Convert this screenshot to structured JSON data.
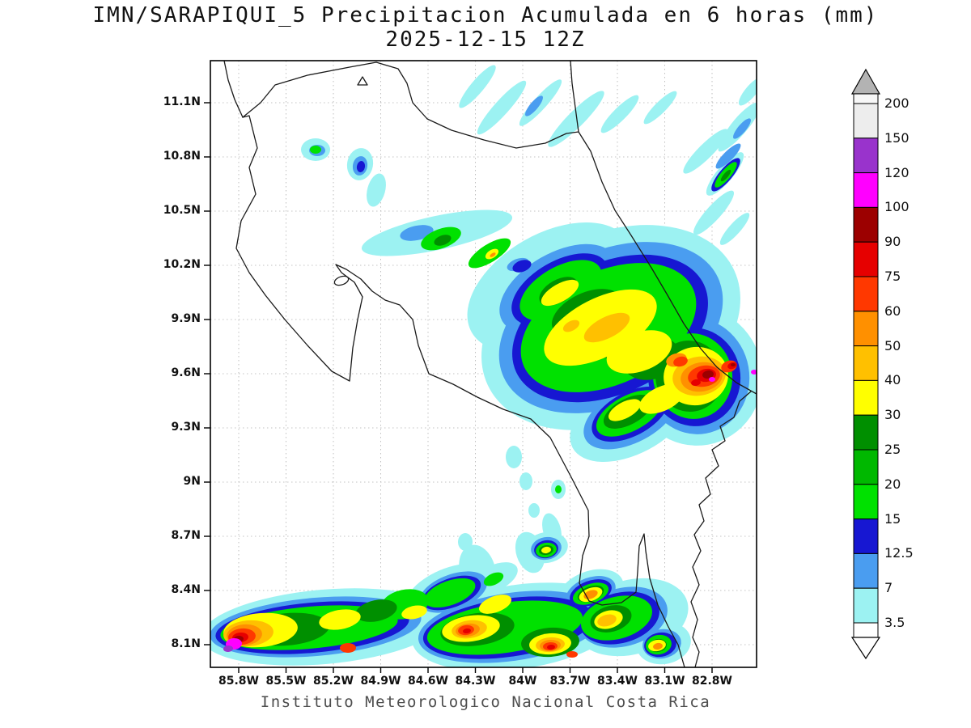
{
  "title": {
    "line1": "IMN/SARAPIQUI_5 Precipitacion Acumulada en 6 horas (mm)",
    "line2": "2025-12-15 12Z"
  },
  "footer": "Instituto Meteorologico Nacional Costa Rica",
  "map": {
    "region": "Costa Rica",
    "lat_ticks": [
      "11.1N",
      "10.8N",
      "10.5N",
      "10.2N",
      "9.9N",
      "9.6N",
      "9.3N",
      "9N",
      "8.7N",
      "8.4N",
      "8.1N"
    ],
    "lon_ticks": [
      "85.8W",
      "85.5W",
      "85.2W",
      "84.9W",
      "84.6W",
      "84.3W",
      "84W",
      "83.7W",
      "83.4W",
      "83.1W",
      "82.8W"
    ],
    "grid_style": "dashed",
    "outline_color": "#111111"
  },
  "colorbar": {
    "tick_labels": [
      "200",
      "150",
      "120",
      "100",
      "90",
      "75",
      "60",
      "50",
      "40",
      "30",
      "25",
      "20",
      "15",
      "12.5",
      "7",
      "3.5"
    ],
    "above_max_arrow_color": "#b3b3b3",
    "below_min_arrow_color": "#ffffff",
    "segment_colors_top_to_bottom": [
      "#f7f7f7",
      "#ededed",
      "#9933cc",
      "#ff00ff",
      "#9c0000",
      "#e60000",
      "#ff3800",
      "#ff9000",
      "#ffc000",
      "#ffff00",
      "#008f00",
      "#00b800",
      "#00e100",
      "#1717d2",
      "#4a9df0",
      "#9cf2f2",
      "#ffffff"
    ]
  },
  "chart_data": {
    "type": "heatmap",
    "title": "IMN/SARAPIQUI_5 Precipitacion Acumulada en 6 horas (mm)",
    "subtitle": "2025-12-15 12Z",
    "variable": "Precipitacion Acumulada en 6 horas",
    "units": "mm",
    "x_ticks": [
      "85.8W",
      "85.5W",
      "85.2W",
      "84.9W",
      "84.6W",
      "84.3W",
      "84W",
      "83.7W",
      "83.4W",
      "83.1W",
      "82.8W"
    ],
    "y_ticks": [
      "11.1N",
      "10.8N",
      "10.5N",
      "10.2N",
      "9.9N",
      "9.6N",
      "9.3N",
      "9N",
      "8.7N",
      "8.4N",
      "8.1N"
    ],
    "legend_levels_mm": [
      3.5,
      7,
      12.5,
      15,
      20,
      25,
      30,
      40,
      50,
      60,
      75,
      90,
      100,
      120,
      150,
      200
    ],
    "legend_colors_low_to_high": [
      "#ffffff",
      "#9cf2f2",
      "#4a9df0",
      "#1717d2",
      "#00e100",
      "#00b800",
      "#008f00",
      "#ffff00",
      "#ffc000",
      "#ff9000",
      "#ff3800",
      "#e60000",
      "#9c0000",
      "#ff00ff",
      "#9933cc",
      "#ededed",
      "#f7f7f7"
    ],
    "legend_position": "right",
    "grid": "dashed",
    "attribution": "Instituto Meteorologico Nacional Costa Rica"
  }
}
